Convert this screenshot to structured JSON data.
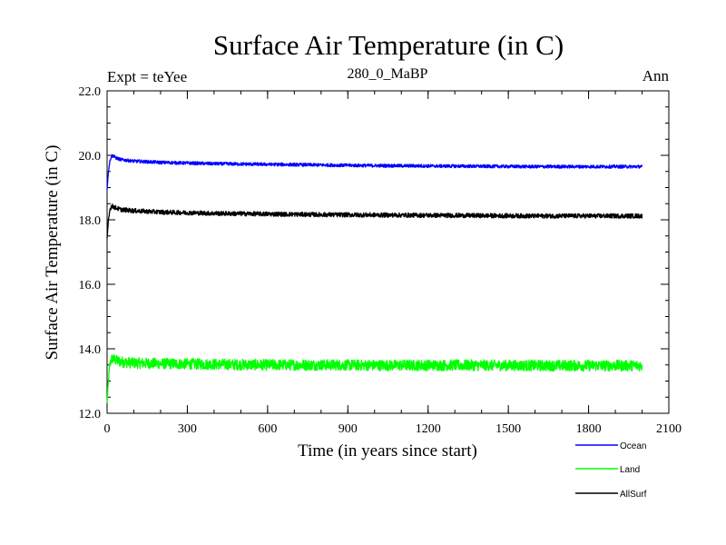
{
  "chart_data": {
    "type": "line",
    "title": "Surface Air Temperature (in C)",
    "subtitle": "280_0_MaBP",
    "left_label": "Expt = teYee",
    "right_label": "Ann",
    "xlabel": "Time (in years since start)",
    "ylabel": "Surface Air Temperature (in C)",
    "xlim": [
      0,
      2100
    ],
    "ylim": [
      12,
      22
    ],
    "xticks": [
      0,
      300,
      600,
      900,
      1200,
      1500,
      1800,
      2100
    ],
    "xtick_labels": [
      "0",
      "300",
      "600",
      "900",
      "1200",
      "1500",
      "1800",
      "2100"
    ],
    "yticks": [
      12,
      14,
      16,
      18,
      20,
      22
    ],
    "ytick_labels": [
      "12.0",
      "14.0",
      "16.0",
      "18.0",
      "20.0",
      "22.0"
    ],
    "grid": false,
    "legend_position": "bottom-right, below plot",
    "series": [
      {
        "name": "Ocean",
        "color": "#0000ff",
        "x": [
          0,
          5,
          10,
          15,
          20,
          30,
          50,
          100,
          200,
          400,
          600,
          800,
          1000,
          1200,
          1400,
          1600,
          1800,
          2000
        ],
        "values": [
          18.95,
          19.5,
          19.8,
          19.95,
          20.0,
          19.93,
          19.87,
          19.82,
          19.78,
          19.74,
          19.72,
          19.7,
          19.68,
          19.67,
          19.66,
          19.65,
          19.65,
          19.65
        ],
        "noise": 0.05
      },
      {
        "name": "Land",
        "color": "#00ff00",
        "x": [
          0,
          5,
          10,
          15,
          20,
          30,
          50,
          100,
          200,
          400,
          600,
          800,
          1000,
          1200,
          1400,
          1600,
          1800,
          2000
        ],
        "values": [
          12.3,
          13.0,
          13.5,
          13.65,
          13.7,
          13.65,
          13.6,
          13.56,
          13.54,
          13.52,
          13.5,
          13.5,
          13.49,
          13.49,
          13.49,
          13.48,
          13.48,
          13.48
        ],
        "noise": 0.17
      },
      {
        "name": "AllSurf",
        "color": "#000000",
        "x": [
          0,
          5,
          10,
          15,
          20,
          30,
          50,
          100,
          200,
          400,
          600,
          800,
          1000,
          1200,
          1400,
          1600,
          1800,
          2000
        ],
        "values": [
          17.4,
          18.0,
          18.3,
          18.4,
          18.42,
          18.38,
          18.32,
          18.28,
          18.24,
          18.2,
          18.18,
          18.16,
          18.15,
          18.14,
          18.13,
          18.12,
          18.12,
          18.12
        ],
        "noise": 0.07
      }
    ]
  }
}
